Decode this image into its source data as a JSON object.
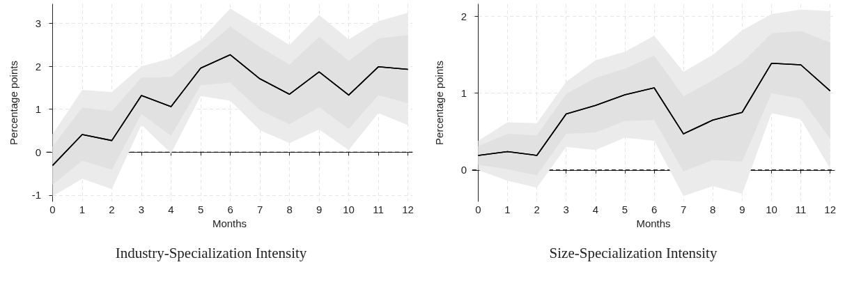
{
  "chart_data": [
    {
      "type": "line",
      "xlabel": "Months",
      "ylabel": "Percentage points",
      "annotations": [
        "Industry-Specialization Intensity"
      ],
      "x": [
        0,
        1,
        2,
        3,
        4,
        5,
        6,
        7,
        8,
        9,
        10,
        11,
        12
      ],
      "xlim": [
        -0.2,
        12.15
      ],
      "xticks": [
        0,
        1,
        2,
        3,
        4,
        5,
        6,
        7,
        8,
        9,
        10,
        11,
        12
      ],
      "ylim": [
        -1.15,
        3.45
      ],
      "yticks": [
        -1,
        0,
        1,
        2,
        3
      ],
      "grid": true,
      "marker": "none",
      "line_style": "solid",
      "ref_lines": [
        {
          "axis": "y",
          "value": 0,
          "label": null,
          "color": "#000000",
          "line_style": "dashed"
        }
      ],
      "series": [
        {
          "color": "#000000",
          "values": [
            -0.31,
            0.41,
            0.27,
            1.32,
            1.06,
            1.96,
            2.27,
            1.71,
            1.35,
            1.87,
            1.33,
            1.99,
            1.93
          ],
          "lower": [
            -1.03,
            -0.62,
            -0.86,
            0.64,
            -0.03,
            1.31,
            1.2,
            0.51,
            0.21,
            0.53,
            0.05,
            0.91,
            0.63
          ],
          "upper": [
            0.42,
            1.45,
            1.4,
            2.0,
            2.19,
            2.62,
            3.35,
            2.93,
            2.5,
            3.2,
            2.63,
            3.05,
            3.25
          ]
        },
        {
          "color": "#000000",
          "values": [
            -0.31,
            0.41,
            0.27,
            1.32,
            1.06,
            1.96,
            2.27,
            1.71,
            1.35,
            1.87,
            1.33,
            1.99,
            1.93
          ],
          "lower": [
            -0.76,
            -0.2,
            -0.41,
            0.89,
            0.38,
            1.56,
            1.62,
            0.98,
            0.65,
            1.05,
            0.54,
            1.33,
            1.14
          ],
          "upper": [
            0.13,
            1.04,
            0.96,
            1.74,
            1.75,
            2.35,
            2.93,
            2.45,
            2.04,
            2.69,
            2.13,
            2.65,
            2.73
          ]
        }
      ]
    },
    {
      "type": "line",
      "xlabel": "Months",
      "ylabel": "Percentage points",
      "annotations": [
        "Size-Specialization Intensity"
      ],
      "x": [
        0,
        1,
        2,
        3,
        4,
        5,
        6,
        7,
        8,
        9,
        10,
        11,
        12
      ],
      "xlim": [
        -0.2,
        12.15
      ],
      "xticks": [
        0,
        1,
        2,
        3,
        4,
        5,
        6,
        7,
        8,
        9,
        10,
        11,
        12
      ],
      "ylim": [
        -0.41,
        2.16
      ],
      "yticks": [
        0,
        1,
        2
      ],
      "grid": true,
      "marker": "none",
      "line_style": "solid",
      "ref_lines": [
        {
          "axis": "y",
          "value": 0,
          "label": null,
          "color": "#000000",
          "line_style": "dashed"
        }
      ],
      "series": [
        {
          "color": "#000000",
          "values": [
            0.19,
            0.24,
            0.19,
            0.73,
            0.84,
            0.98,
            1.07,
            0.47,
            0.65,
            0.75,
            1.39,
            1.37,
            1.03
          ],
          "lower": [
            0.0,
            -0.14,
            -0.23,
            0.3,
            0.26,
            0.42,
            0.38,
            -0.34,
            -0.21,
            -0.31,
            0.74,
            0.66,
            0.02
          ],
          "upper": [
            0.38,
            0.62,
            0.61,
            1.15,
            1.43,
            1.54,
            1.75,
            1.28,
            1.5,
            1.82,
            2.03,
            2.09,
            2.07
          ]
        },
        {
          "color": "#000000",
          "values": [
            0.19,
            0.24,
            0.19,
            0.73,
            0.84,
            0.98,
            1.07,
            0.47,
            0.65,
            0.75,
            1.39,
            1.37,
            1.03
          ],
          "lower": [
            0.07,
            0.01,
            -0.07,
            0.47,
            0.49,
            0.64,
            0.65,
            -0.02,
            0.13,
            0.11,
            1.0,
            0.93,
            0.41
          ],
          "upper": [
            0.31,
            0.47,
            0.45,
            0.99,
            1.2,
            1.32,
            1.49,
            0.96,
            1.17,
            1.4,
            1.78,
            1.81,
            1.66
          ]
        }
      ]
    }
  ]
}
